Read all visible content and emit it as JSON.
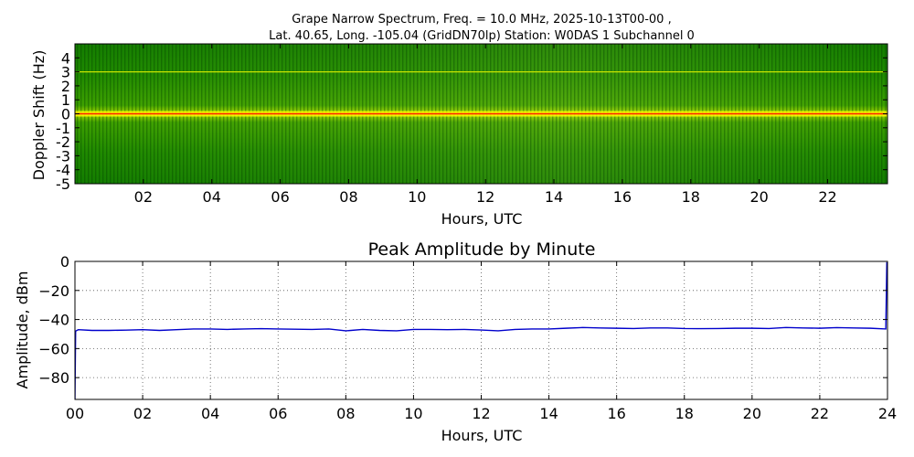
{
  "chart_data": [
    {
      "type": "heatmap",
      "title_line1": "Grape Narrow Spectrum, Freq. = 10.0 MHz, 2025-10-13T00-00 ,",
      "title_line2": "Lat.  40.65, Long. -105.04 (GridDN70lp) Station: W0DAS 1 Subchannel 0",
      "xlabel": "Hours, UTC",
      "ylabel": "Doppler Shift (Hz)",
      "xlim": [
        0,
        23.75
      ],
      "ylim": [
        -5,
        5
      ],
      "xticks": [
        2,
        4,
        6,
        8,
        10,
        12,
        14,
        16,
        18,
        20,
        22
      ],
      "xtick_labels": [
        "02",
        "04",
        "06",
        "08",
        "10",
        "12",
        "14",
        "16",
        "18",
        "20",
        "22"
      ],
      "yticks": [
        4,
        3,
        2,
        1,
        0,
        -1,
        -2,
        -3,
        -4,
        -5
      ],
      "ytick_labels": [
        "4",
        "3",
        "2",
        "1",
        "0",
        "-1",
        "-2",
        "-3",
        "-4",
        "-5"
      ],
      "colormap": [
        "#006400",
        "#2a8a00",
        "#5bb000",
        "#cfe000",
        "#ffff00",
        "#ff0000"
      ],
      "bright_lines_hz": [
        0,
        3
      ],
      "grid": false
    },
    {
      "type": "line",
      "title": "Peak Amplitude by Minute",
      "xlabel": "Hours, UTC",
      "ylabel": "Amplitude, dBm",
      "xlim": [
        0,
        24
      ],
      "ylim": [
        -95,
        0
      ],
      "xticks": [
        0,
        2,
        4,
        6,
        8,
        10,
        12,
        14,
        16,
        18,
        20,
        22,
        24
      ],
      "xtick_labels": [
        "00",
        "02",
        "04",
        "06",
        "08",
        "10",
        "12",
        "14",
        "16",
        "18",
        "20",
        "22",
        "24"
      ],
      "yticks": [
        0,
        -20,
        -40,
        -60,
        -80
      ],
      "ytick_labels": [
        "0",
        "−20",
        "−40",
        "−60",
        "−80"
      ],
      "grid": true,
      "line_color": "#0000cc",
      "x": [
        0,
        0.02,
        0.1,
        0.5,
        1,
        1.5,
        2,
        2.5,
        3,
        3.5,
        4,
        4.5,
        5,
        5.5,
        6,
        6.5,
        7,
        7.5,
        8,
        8.5,
        9,
        9.5,
        10,
        10.5,
        11,
        11.5,
        12,
        12.5,
        13,
        13.5,
        14,
        14.5,
        15,
        15.5,
        16,
        16.5,
        17,
        17.5,
        18,
        18.5,
        19,
        19.5,
        20,
        20.5,
        21,
        21.5,
        22,
        22.5,
        23,
        23.5,
        23.95,
        23.98,
        24
      ],
      "y": [
        -95,
        -48,
        -47,
        -47.5,
        -47.5,
        -47.3,
        -47,
        -47.5,
        -47,
        -46.5,
        -46.5,
        -46.8,
        -46.5,
        -46.3,
        -46.5,
        -46.7,
        -46.8,
        -46.5,
        -47.8,
        -46.8,
        -47.5,
        -47.8,
        -46.8,
        -46.8,
        -47,
        -46.8,
        -47.2,
        -47.8,
        -46.8,
        -46.5,
        -46.5,
        -46,
        -45.5,
        -45.8,
        -46,
        -46.2,
        -45.8,
        -45.8,
        -46.2,
        -46.3,
        -46.2,
        -46,
        -46,
        -46.2,
        -45.5,
        -45.8,
        -46,
        -45.6,
        -45.8,
        -46,
        -46.5,
        -1,
        -1
      ]
    }
  ]
}
